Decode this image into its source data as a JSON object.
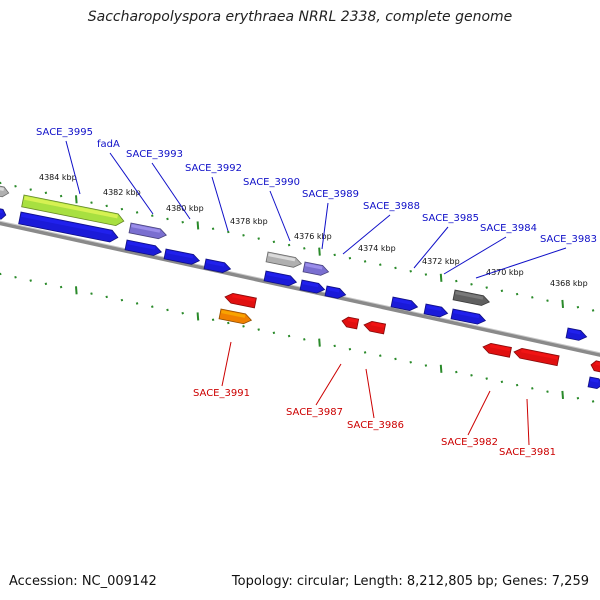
{
  "title": "Saccharopolyspora erythraea NRRL 2338, complete genome",
  "footer": {
    "accession": "Accession: NC_009142",
    "summary": "Topology: circular; Length: 8,212,805 bp; Genes: 7,259"
  },
  "colors": {
    "forward_gene": "#1a1ad8",
    "reverse_gene": "#e01010",
    "rna_gene": "#7a6fd0",
    "highlight_gene": "#a8e040",
    "pseudo_gene": "#b0b0b0",
    "dark_gene": "#606060",
    "orange_gene": "#f08000",
    "tick": "#2a8a2a",
    "backbone": "#8a8a8a"
  },
  "kbp_labels": [
    "4384 kbp",
    "4382 kbp",
    "4380 kbp",
    "4378 kbp",
    "4376 kbp",
    "4374 kbp",
    "4372 kbp",
    "4370 kbp",
    "4368 kbp"
  ],
  "forward_labels": [
    "SACE_3995",
    "fadA",
    "SACE_3993",
    "SACE_3992",
    "SACE_3990",
    "SACE_3989",
    "SACE_3988",
    "SACE_3985",
    "SACE_3984",
    "SACE_3983"
  ],
  "reverse_labels": [
    "SACE_3991",
    "SACE_3987",
    "SACE_3986",
    "SACE_3982",
    "SACE_3981"
  ]
}
